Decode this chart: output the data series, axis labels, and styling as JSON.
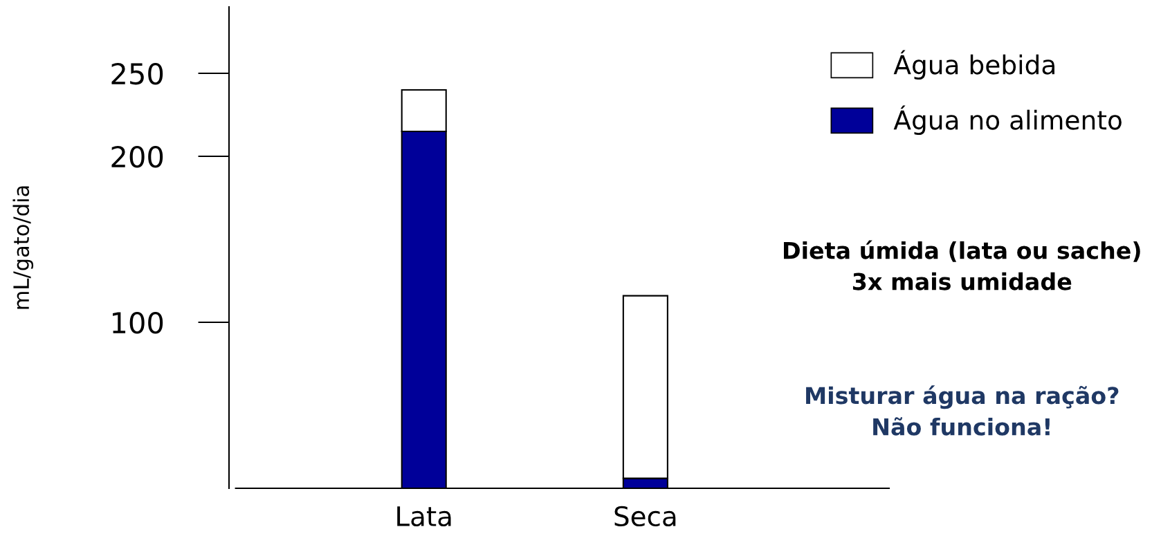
{
  "chart_data": {
    "type": "bar",
    "stacked": true,
    "ylabel": "mL/gato/dia",
    "categories": [
      "Lata",
      "Seca"
    ],
    "series": [
      {
        "name": "Água no alimento",
        "color": "#000099",
        "values": [
          215,
          6
        ]
      },
      {
        "name": "Água bebida",
        "color": "#ffffff",
        "values": [
          25,
          110
        ]
      }
    ],
    "ylim": [
      0,
      290
    ],
    "yticks": [
      100,
      200,
      250
    ],
    "grid": false,
    "legend": "top right",
    "annotations": [
      "Dieta úmida (lata ou sache)\n3x mais umidade",
      "Misturar água na ração?\nNão funciona!"
    ]
  }
}
